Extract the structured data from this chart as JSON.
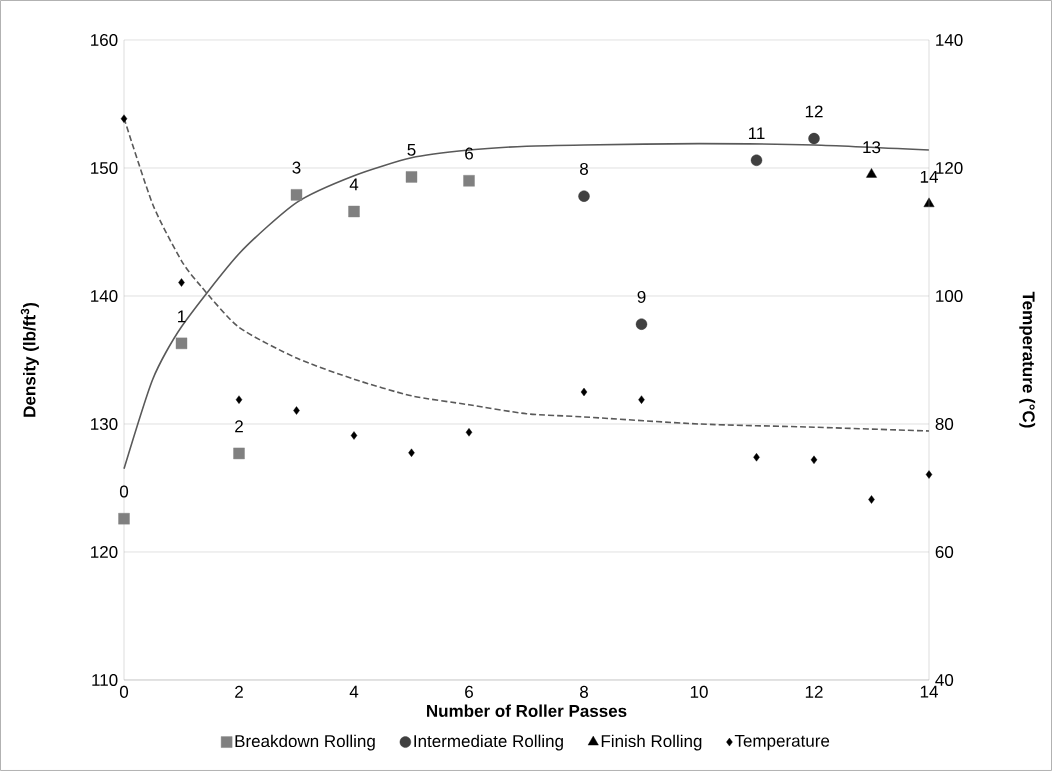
{
  "chart_data": {
    "type": "scatter",
    "xlabel": "Number of Roller Passes",
    "ylabel": "Density (lb/ft$^{3}$)",
    "y2label": "Temperature (°C)",
    "xlim": [
      0,
      14
    ],
    "xticks": [
      0,
      2,
      4,
      6,
      8,
      10,
      12,
      14
    ],
    "ylim": [
      110,
      160
    ],
    "yticks": [
      110,
      120,
      130,
      140,
      150,
      160
    ],
    "y2lim": [
      40,
      140
    ],
    "y2ticks": [
      40,
      60,
      80,
      100,
      120,
      140
    ],
    "grid": "y",
    "legend": "bottom",
    "series": [
      {
        "name": "Breakdown Rolling",
        "color": "#808080",
        "marker": "square",
        "x": [
          0,
          1,
          2,
          3,
          4,
          5,
          6
        ],
        "values": [
          122.6,
          136.3,
          127.7,
          147.9,
          146.6,
          149.3,
          149.0
        ]
      },
      {
        "name": "Intermediate Rolling",
        "color": "#404040",
        "marker": "circle",
        "x": [
          8,
          9,
          11,
          12
        ],
        "values": [
          147.8,
          137.8,
          150.6,
          152.3
        ]
      },
      {
        "name": "Finish Rolling",
        "color": "#000000",
        "marker": "triangle",
        "x": [
          13,
          14
        ],
        "values": [
          149.5,
          147.2
        ]
      },
      {
        "name": "Temperature",
        "color": "#000000",
        "marker": "diamond",
        "axis": "y2",
        "x": [
          0,
          1,
          2,
          3,
          4,
          5,
          6,
          8,
          9,
          11,
          12,
          13,
          14
        ],
        "values": [
          127.7,
          102.1,
          83.8,
          82.1,
          78.2,
          75.5,
          78.7,
          85.0,
          83.8,
          74.8,
          74.4,
          68.2,
          72.1
        ]
      },
      {
        "type": "line",
        "color": "#595959",
        "marker": "none",
        "line_style": "solid",
        "x": [
          0,
          0.5,
          1,
          2,
          3,
          4,
          5,
          6,
          7,
          8,
          10,
          12,
          14
        ],
        "values": [
          126.5,
          133.5,
          137.6,
          143.3,
          147.3,
          149.4,
          150.8,
          151.4,
          151.7,
          151.8,
          151.9,
          151.8,
          151.4
        ]
      },
      {
        "type": "line",
        "color": "#595959",
        "marker": "none",
        "line_style": "dashed",
        "axis": "y2",
        "x": [
          0,
          0.5,
          1,
          1.35,
          2,
          3,
          4,
          5,
          6,
          7,
          8,
          10,
          12,
          14
        ],
        "values": [
          127.8,
          114.3,
          105.5,
          101.4,
          95.1,
          90.3,
          87.0,
          84.4,
          83.0,
          81.6,
          81.1,
          80.0,
          79.5,
          78.9
        ]
      }
    ],
    "annotations": [
      {
        "text": "0",
        "x": 0,
        "y": 122.6
      },
      {
        "text": "1",
        "x": 1,
        "y": 136.3
      },
      {
        "text": "2",
        "x": 2,
        "y": 127.7
      },
      {
        "text": "3",
        "x": 3,
        "y": 147.9
      },
      {
        "text": "4",
        "x": 4,
        "y": 146.6
      },
      {
        "text": "5",
        "x": 5,
        "y": 149.3
      },
      {
        "text": "6",
        "x": 6,
        "y": 149.0
      },
      {
        "text": "8",
        "x": 8,
        "y": 147.8
      },
      {
        "text": "9",
        "x": 9,
        "y": 137.8
      },
      {
        "text": "11",
        "x": 11,
        "y": 150.6
      },
      {
        "text": "12",
        "x": 12,
        "y": 152.3
      },
      {
        "text": "13",
        "x": 13,
        "y": 149.5
      },
      {
        "text": "14",
        "x": 14,
        "y": 147.2
      }
    ]
  }
}
